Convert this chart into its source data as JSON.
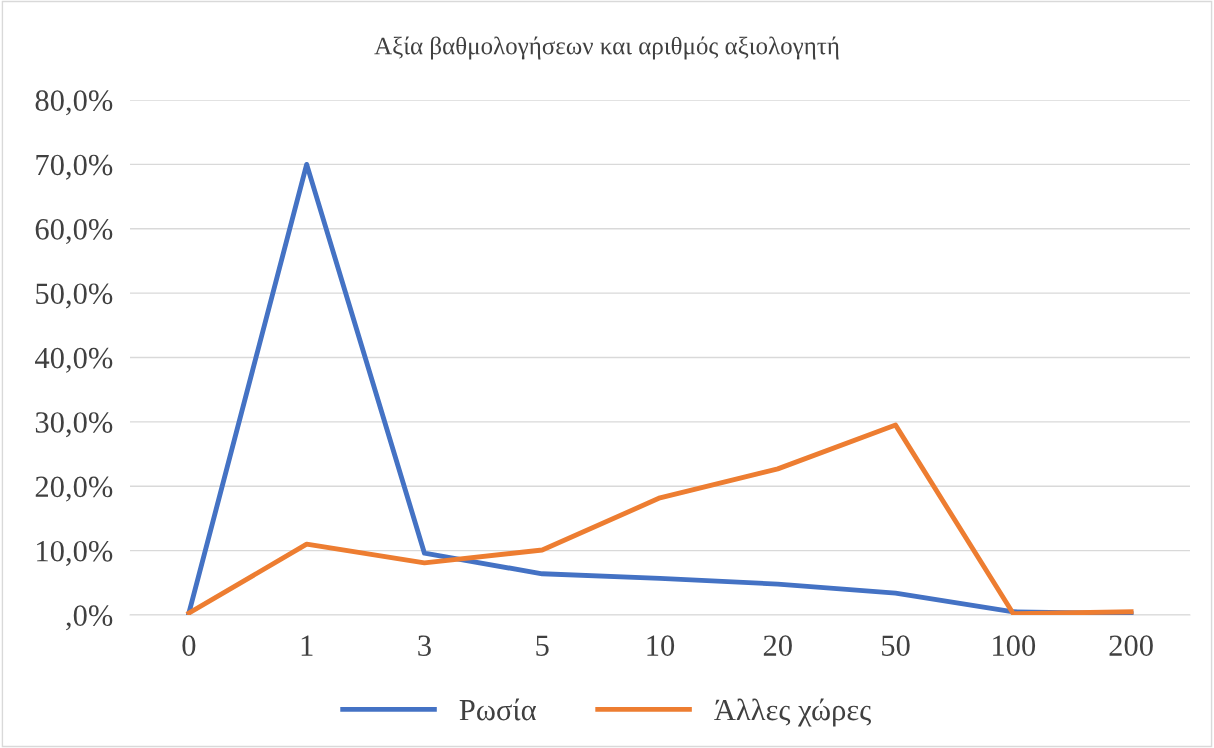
{
  "chart_data": {
    "type": "line",
    "title": "Αξία βαθμολογήσεων και αριθμός αξιολογητή",
    "categories": [
      "0",
      "1",
      "3",
      "5",
      "10",
      "20",
      "50",
      "100",
      "200"
    ],
    "series": [
      {
        "name": "Ρωσία",
        "color": "#4472c4",
        "values": [
          0.3,
          70.0,
          9.6,
          6.4,
          5.7,
          4.8,
          3.4,
          0.5,
          0.2
        ]
      },
      {
        "name": "Άλλες χώρες",
        "color": "#ed7d31",
        "values": [
          0.3,
          11.0,
          8.1,
          10.1,
          18.2,
          22.7,
          29.5,
          0.2,
          0.5
        ]
      }
    ],
    "ylim": [
      0,
      80
    ],
    "yticks": [
      {
        "value": 0,
        "label": ",0%"
      },
      {
        "value": 10,
        "label": "10,0%"
      },
      {
        "value": 20,
        "label": "20,0%"
      },
      {
        "value": 30,
        "label": "30,0%"
      },
      {
        "value": 40,
        "label": "40,0%"
      },
      {
        "value": 50,
        "label": "50,0%"
      },
      {
        "value": 60,
        "label": "60,0%"
      },
      {
        "value": 70,
        "label": "70,0%"
      },
      {
        "value": 80,
        "label": "80,0%"
      }
    ],
    "grid": "y",
    "legend": "bottom",
    "marker": "none",
    "line_style": "solid"
  }
}
